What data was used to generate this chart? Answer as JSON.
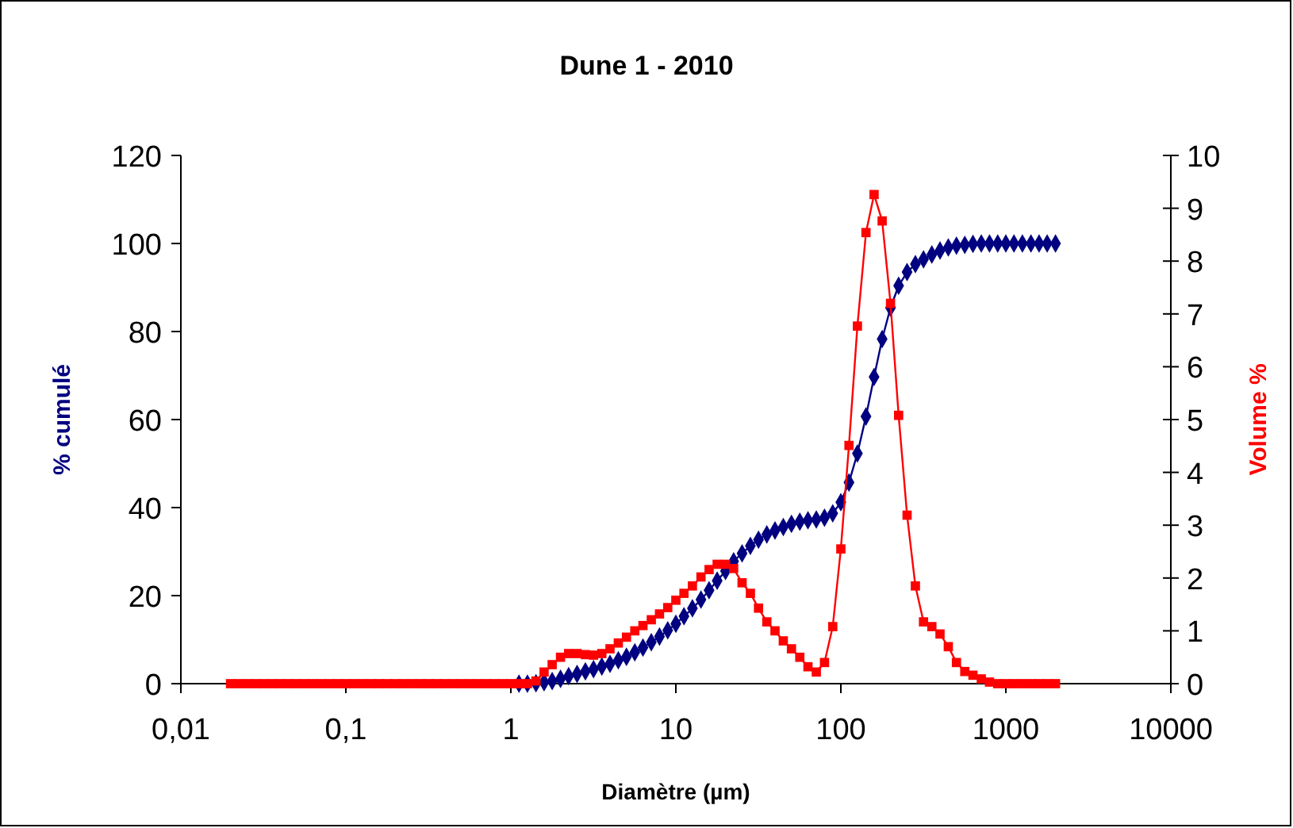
{
  "chart_data": {
    "type": "line",
    "title": "Dune 1 - 2010",
    "xlabel": "Diamètre (µm)",
    "ylabel": "% cumulé",
    "y2label": "Volume %",
    "log": "x",
    "grid": false,
    "line_style": "solid",
    "x": [
      0.02,
      0.0224,
      0.0252,
      0.0283,
      0.0317,
      0.0356,
      0.0399,
      0.0448,
      0.0502,
      0.0564,
      0.0632,
      0.071,
      0.0796,
      0.0893,
      0.1,
      0.112,
      0.126,
      0.142,
      0.159,
      0.178,
      0.2,
      0.224,
      0.252,
      0.283,
      0.317,
      0.356,
      0.399,
      0.448,
      0.502,
      0.564,
      0.632,
      0.71,
      0.796,
      0.893,
      1,
      1.12,
      1.26,
      1.42,
      1.59,
      1.78,
      2,
      2.24,
      2.52,
      2.83,
      3.17,
      3.56,
      3.99,
      4.48,
      5.02,
      5.64,
      6.32,
      7.1,
      7.96,
      8.93,
      10,
      11.2,
      12.6,
      14.2,
      15.9,
      17.8,
      20,
      22.4,
      25.2,
      28.3,
      31.7,
      35.6,
      39.9,
      44.8,
      50.2,
      56.4,
      63.2,
      71,
      79.6,
      89.3,
      100,
      112,
      126,
      142,
      159,
      178,
      200,
      224,
      252,
      283,
      317,
      356,
      399,
      448,
      502,
      564,
      632,
      710,
      796,
      893,
      1000,
      1120,
      1260,
      1420,
      1590,
      1780,
      2000
    ],
    "xlim": [
      0.01,
      10000
    ],
    "xticks": [
      {
        "value": 0.01,
        "label": "0,01"
      },
      {
        "value": 0.1,
        "label": "0,1"
      },
      1,
      10,
      100,
      1000,
      10000
    ],
    "ylim": [
      0,
      120
    ],
    "yticks": [
      0,
      20,
      40,
      60,
      80,
      100,
      120
    ],
    "y2lim": [
      0,
      10
    ],
    "y2ticks": [
      0,
      1,
      2,
      3,
      4,
      5,
      6,
      7,
      8,
      9,
      10
    ],
    "series": [
      {
        "color": "#000080",
        "marker": "diamond",
        "values": [
          null,
          null,
          null,
          null,
          null,
          null,
          null,
          null,
          null,
          null,
          null,
          null,
          null,
          null,
          null,
          null,
          null,
          null,
          null,
          null,
          null,
          null,
          null,
          null,
          null,
          null,
          null,
          null,
          null,
          null,
          null,
          null,
          null,
          null,
          null,
          0,
          0,
          0.1,
          0.3,
          0.6,
          1.1,
          1.7,
          2.2,
          2.8,
          3.3,
          3.9,
          4.5,
          5.3,
          6.1,
          7.1,
          8.2,
          9.4,
          10.7,
          12.1,
          13.6,
          15.3,
          17.1,
          19.1,
          21.2,
          23.4,
          25.6,
          27.8,
          29.6,
          31.3,
          32.7,
          33.9,
          34.8,
          35.6,
          36.3,
          36.8,
          37.1,
          37.3,
          37.7,
          38.7,
          41.2,
          45.7,
          52.3,
          60.7,
          69.7,
          78.3,
          85.4,
          90.4,
          93.5,
          95.3,
          96.4,
          97.5,
          98.4,
          99.1,
          99.5,
          99.7,
          99.9,
          100,
          100,
          100,
          100,
          100,
          100,
          100,
          100,
          100,
          100
        ]
      },
      {
        "color": "#ff0000",
        "marker": "square",
        "axis": "y2",
        "values": [
          0,
          0,
          0,
          0,
          0,
          0,
          0,
          0,
          0,
          0,
          0,
          0,
          0,
          0,
          0,
          0,
          0,
          0,
          0,
          0,
          0,
          0,
          0,
          0,
          0,
          0,
          0,
          0,
          0,
          0,
          0,
          0,
          0,
          0,
          0,
          0,
          0,
          0.05,
          0.22,
          0.36,
          0.5,
          0.57,
          0.57,
          0.55,
          0.54,
          0.57,
          0.66,
          0.77,
          0.88,
          1.0,
          1.1,
          1.21,
          1.32,
          1.44,
          1.58,
          1.71,
          1.85,
          2.02,
          2.16,
          2.26,
          2.26,
          2.18,
          1.91,
          1.71,
          1.43,
          1.17,
          1.0,
          0.81,
          0.66,
          0.5,
          0.32,
          0.22,
          0.4,
          1.08,
          2.55,
          4.51,
          6.77,
          8.54,
          9.26,
          8.76,
          7.2,
          5.08,
          3.19,
          1.85,
          1.17,
          1.08,
          0.94,
          0.7,
          0.4,
          0.23,
          0.16,
          0.09,
          0.03,
          0,
          0,
          0,
          0,
          0,
          0,
          0,
          0
        ]
      }
    ]
  }
}
